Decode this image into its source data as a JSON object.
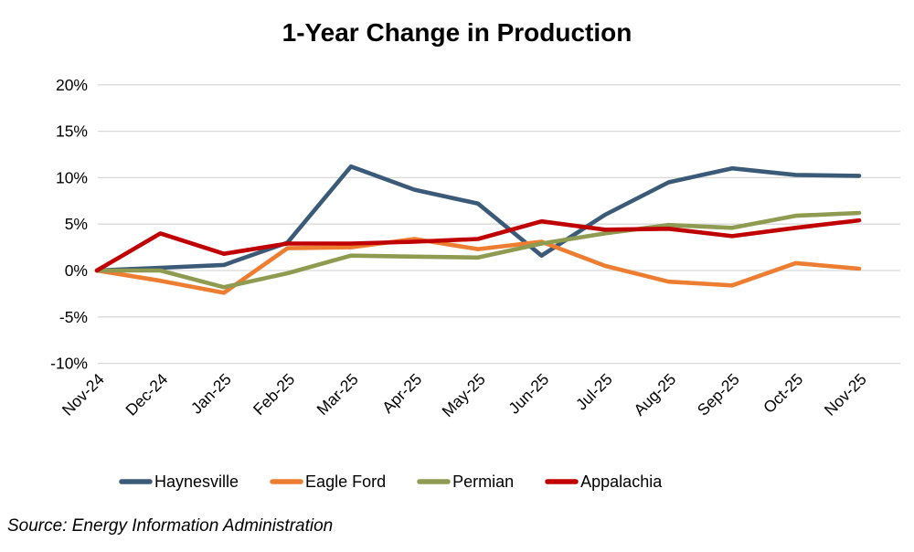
{
  "title": "1-Year Change in Production",
  "source": "Source: Energy Information Administration",
  "chart_data": {
    "type": "line",
    "title": "1-Year Change in Production",
    "xlabel": "",
    "ylabel": "",
    "categories": [
      "Nov-24",
      "Dec-24",
      "Jan-25",
      "Feb-25",
      "Mar-25",
      "Apr-25",
      "May-25",
      "Jun-25",
      "Jul-25",
      "Aug-25",
      "Sep-25",
      "Oct-25",
      "Nov-25"
    ],
    "series": [
      {
        "name": "Haynesville",
        "color": "#3A5A78",
        "values": [
          0,
          0.3,
          0.6,
          3.0,
          11.2,
          8.7,
          7.2,
          1.6,
          6.0,
          9.5,
          11.0,
          10.3,
          10.2
        ]
      },
      {
        "name": "Eagle Ford",
        "color": "#ED7D31",
        "values": [
          0,
          -1.1,
          -2.4,
          2.4,
          2.5,
          3.4,
          2.3,
          3.1,
          0.5,
          -1.2,
          -1.6,
          0.8,
          0.2
        ]
      },
      {
        "name": "Permian",
        "color": "#8E9B51",
        "values": [
          0,
          0.0,
          -1.8,
          -0.3,
          1.6,
          1.5,
          1.4,
          2.9,
          4.0,
          4.9,
          4.6,
          5.9,
          6.2
        ]
      },
      {
        "name": "Appalachia",
        "color": "#C00000",
        "values": [
          0,
          4.0,
          1.8,
          2.9,
          2.9,
          3.1,
          3.4,
          5.3,
          4.4,
          4.5,
          3.7,
          4.6,
          5.4
        ]
      }
    ],
    "ylim": [
      -10,
      20
    ],
    "yticks": [
      {
        "label": "20%",
        "value": 20
      },
      {
        "label": "15%",
        "value": 15
      },
      {
        "label": "10%",
        "value": 10
      },
      {
        "label": "5%",
        "value": 5
      },
      {
        "label": "0%",
        "value": 0
      },
      {
        "label": "-5%",
        "value": -5
      },
      {
        "label": "-10%",
        "value": -10
      }
    ],
    "grid": true,
    "gridline_color": "#D9D9D9",
    "legend_position": "bottom"
  }
}
